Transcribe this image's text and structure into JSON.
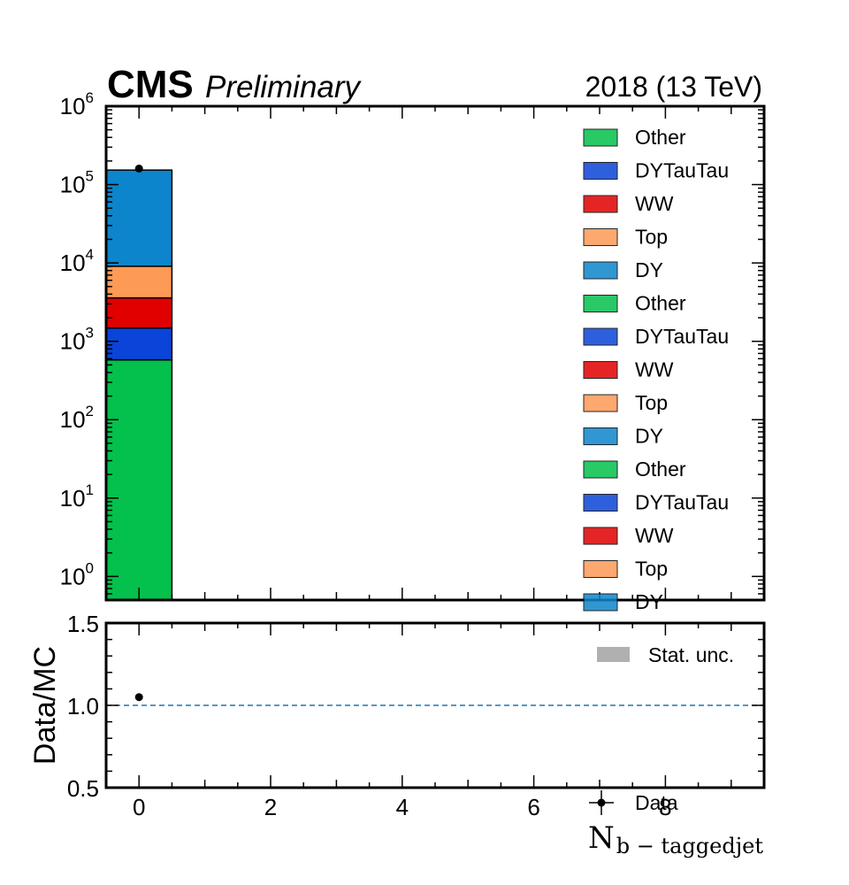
{
  "header": {
    "experiment": "CMS",
    "status": "Preliminary",
    "lumi": "2018 (13 TeV)"
  },
  "colors": {
    "Other": "#04c04c",
    "DYTauTau": "#0a44d8",
    "WW": "#e10000",
    "Top": "#fd9a56",
    "DY": "#0c85cc",
    "data": "#000000",
    "ratio_line": "#1f77b4",
    "stat_unc": "#b0b0b0"
  },
  "chart_data": [
    {
      "type": "bar",
      "subtype": "stacked-histogram",
      "yscale": "log",
      "xlim": [
        -0.5,
        9.5
      ],
      "ylim": [
        0.5,
        1000000
      ],
      "yticks": [
        {
          "value": 1,
          "base": "10",
          "exp": "0"
        },
        {
          "value": 10,
          "base": "10",
          "exp": "1"
        },
        {
          "value": 100,
          "base": "10",
          "exp": "2"
        },
        {
          "value": 1000,
          "base": "10",
          "exp": "3"
        },
        {
          "value": 10000,
          "base": "10",
          "exp": "4"
        },
        {
          "value": 100000,
          "base": "10",
          "exp": "5"
        },
        {
          "value": 1000000,
          "base": "10",
          "exp": "6"
        }
      ],
      "bins": [
        [
          -0.5,
          0.5
        ]
      ],
      "series": [
        {
          "name": "Other",
          "values": [
            580
          ]
        },
        {
          "name": "DYTauTau",
          "values": [
            900
          ]
        },
        {
          "name": "WW",
          "values": [
            2100
          ]
        },
        {
          "name": "Top",
          "values": [
            5500
          ]
        },
        {
          "name": "DY",
          "values": [
            144000
          ]
        }
      ],
      "data_points": [
        {
          "x": 0,
          "y": 160000
        }
      ],
      "legend": {
        "placement": "top-right",
        "entries": [
          "Other",
          "DYTauTau",
          "WW",
          "Top",
          "DY",
          "Other",
          "DYTauTau",
          "WW",
          "Top",
          "DY",
          "Other",
          "DYTauTau",
          "WW",
          "Top",
          "DY"
        ]
      }
    },
    {
      "type": "scatter",
      "subtype": "ratio",
      "xlim": [
        -0.5,
        9.5
      ],
      "ylim": [
        0.5,
        1.5
      ],
      "xticks": [
        "0",
        "2",
        "4",
        "6",
        "8"
      ],
      "xtick_values": [
        0,
        2,
        4,
        6,
        8
      ],
      "yticks": [
        "0.5",
        "1.0",
        "1.5"
      ],
      "ytick_values": [
        0.5,
        1.0,
        1.5
      ],
      "ylabel": "Data/MC",
      "xlabel_base": "N",
      "xlabel_sub": "b − taggedjet",
      "reference_line": 1.0,
      "points": [
        {
          "x": 0,
          "y": 1.05
        }
      ],
      "legend": {
        "stat_label": "Stat. unc.",
        "data_label": "Data"
      }
    }
  ]
}
